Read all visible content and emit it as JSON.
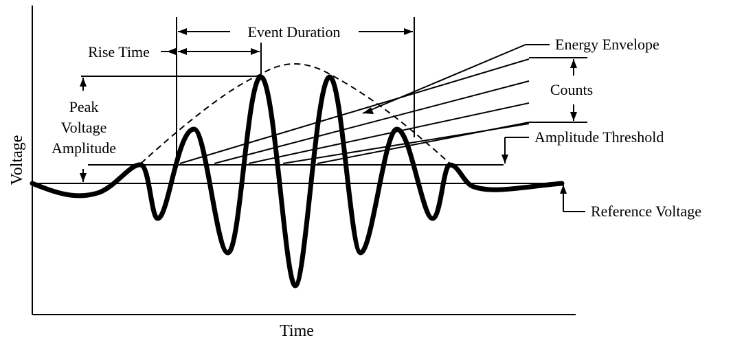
{
  "labels": {
    "event_duration": "Event Duration",
    "rise_time": "Rise Time",
    "energy_envelope": "Energy Envelope",
    "counts": "Counts",
    "peak_voltage": "Peak",
    "peak_voltage_2": "Voltage",
    "peak_voltage_3": "Amplitude",
    "amplitude_threshold": "Amplitude Threshold",
    "reference_voltage": "Reference Voltage",
    "y_axis": "Voltage",
    "x_axis": "Time"
  },
  "colors": {
    "ink": "#000000",
    "background": "#ffffff"
  }
}
